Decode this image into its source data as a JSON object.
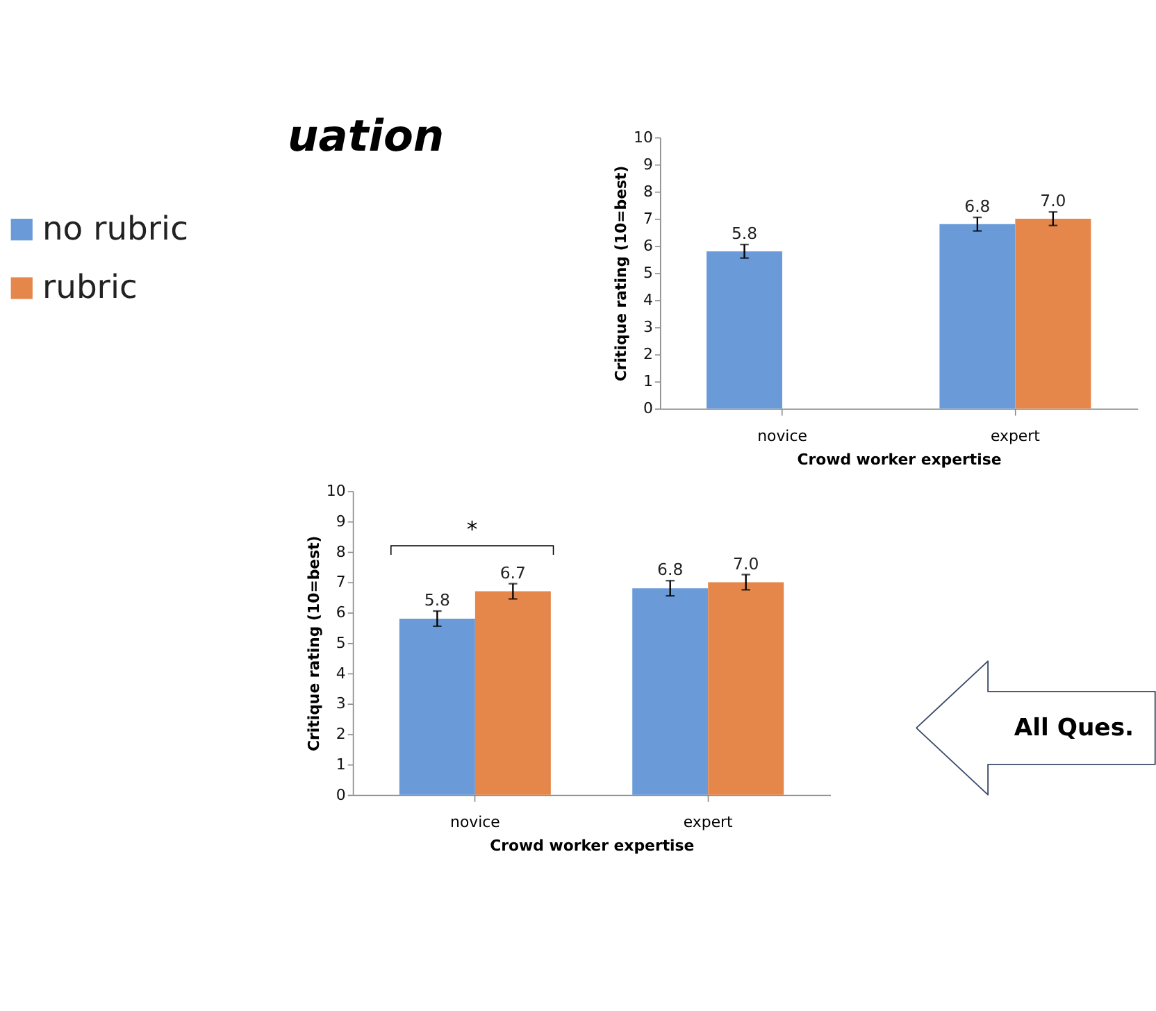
{
  "chart_data": [
    {
      "type": "bar",
      "xlabel": "Crowd worker expertise",
      "ylabel": "Critique rating (10=best)",
      "categories": [
        "novice",
        "expert"
      ],
      "ylim": [
        0,
        10
      ],
      "yticks": [
        0,
        1,
        2,
        3,
        4,
        5,
        6,
        7,
        8,
        9,
        10
      ],
      "grid": false,
      "legend": "left",
      "annotations": [
        "uation"
      ],
      "series": [
        {
          "name": "no rubric",
          "color": "#6a9bd8",
          "values": [
            5.8,
            6.8
          ],
          "errors": [
            0.25,
            0.25
          ],
          "value_labels": [
            "5.8",
            "6.8"
          ]
        },
        {
          "name": "rubric",
          "color": "#e5874a",
          "values": [
            0,
            7.0
          ],
          "errors": [
            null,
            0.25
          ],
          "value_labels": [
            null,
            "7.0"
          ]
        }
      ]
    },
    {
      "type": "bar",
      "xlabel": "Crowd worker expertise",
      "ylabel": "Critique rating (10=best)",
      "categories": [
        "novice",
        "expert"
      ],
      "ylim": [
        0,
        10
      ],
      "yticks": [
        0,
        1,
        2,
        3,
        4,
        5,
        6,
        7,
        8,
        9,
        10
      ],
      "grid": false,
      "annotations": [
        "*",
        "All Ques."
      ],
      "series": [
        {
          "color": "#6a9bd8",
          "values": [
            5.8,
            6.8
          ],
          "errors": [
            0.25,
            0.25
          ],
          "value_labels": [
            "5.8",
            "6.8"
          ]
        },
        {
          "color": "#e5874a",
          "values": [
            6.7,
            7.0
          ],
          "errors": [
            0.25,
            0.25
          ],
          "value_labels": [
            "6.7",
            "7.0"
          ]
        }
      ]
    }
  ]
}
